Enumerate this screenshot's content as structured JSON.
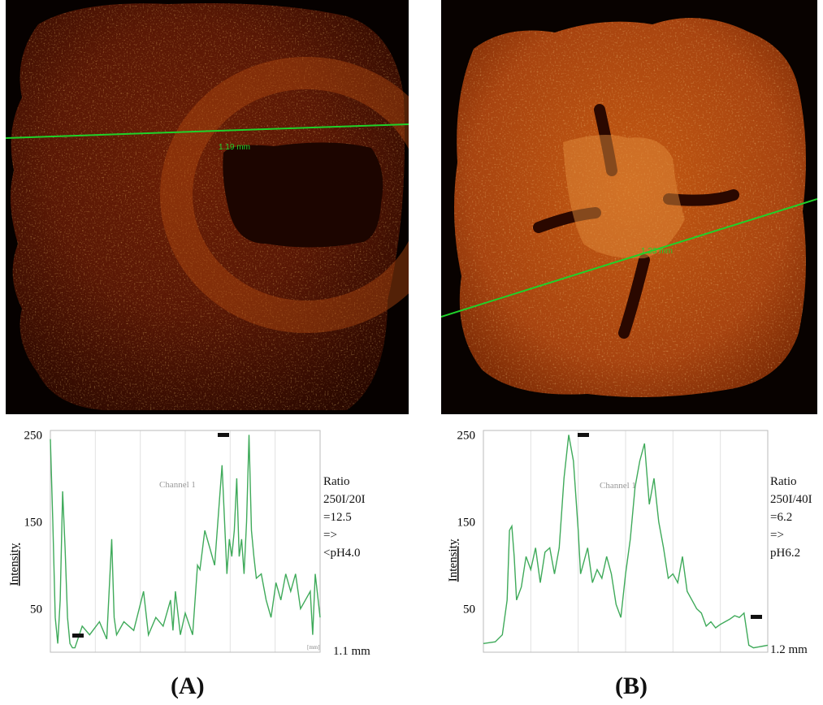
{
  "figure": {
    "panels": [
      {
        "id": "A",
        "label": "(A)",
        "micrograph": {
          "colormap": "hot",
          "line_label": "1.19 mm"
        },
        "plot": {
          "series_label": "Channel 1",
          "ylabel": "Intensity",
          "yticks": [
            "250",
            "150",
            "50"
          ],
          "ylim": [
            0,
            255
          ],
          "corner_mark": "[mm]",
          "end_label": "1.1 mm",
          "note": "Ratio\n250I/20I\n=12.5\n =>\n<pH4.0"
        }
      },
      {
        "id": "B",
        "label": "(B)",
        "micrograph": {
          "colormap": "hot",
          "line_label": "1.23 mm"
        },
        "plot": {
          "series_label": "Channel 1",
          "ylabel": "Intensity",
          "yticks": [
            "250",
            "150",
            "50"
          ],
          "ylim": [
            0,
            255
          ],
          "end_label": "1.2 mm",
          "note": "Ratio\n250I/40I\n=6.2\n=>\npH6.2"
        }
      }
    ],
    "colors": {
      "profile": "#3faa5a",
      "scan_line": "#1fd22a",
      "tissue_hot": "#d06a1a"
    }
  },
  "chart_data": [
    {
      "type": "line",
      "title": "",
      "xlabel": "",
      "ylabel": "Intensity",
      "ylim": [
        0,
        255
      ],
      "x_units": "mm",
      "x_max": 1.1,
      "series": [
        {
          "name": "Channel 1",
          "x": [
            0.0,
            0.01,
            0.02,
            0.03,
            0.04,
            0.05,
            0.06,
            0.07,
            0.08,
            0.09,
            0.1,
            0.13,
            0.16,
            0.2,
            0.23,
            0.25,
            0.26,
            0.27,
            0.3,
            0.34,
            0.38,
            0.4,
            0.43,
            0.46,
            0.49,
            0.5,
            0.51,
            0.53,
            0.55,
            0.58,
            0.6,
            0.61,
            0.63,
            0.65,
            0.67,
            0.7,
            0.72,
            0.73,
            0.74,
            0.75,
            0.76,
            0.77,
            0.78,
            0.79,
            0.8,
            0.81,
            0.82,
            0.83,
            0.84,
            0.86,
            0.88,
            0.9,
            0.92,
            0.94,
            0.96,
            0.98,
            1.0,
            1.02,
            1.04,
            1.06,
            1.07,
            1.08,
            1.1
          ],
          "y": [
            245,
            150,
            40,
            10,
            60,
            185,
            120,
            40,
            10,
            5,
            5,
            30,
            20,
            35,
            15,
            130,
            40,
            20,
            35,
            25,
            70,
            20,
            40,
            30,
            60,
            25,
            70,
            20,
            45,
            20,
            100,
            95,
            140,
            120,
            100,
            215,
            90,
            130,
            110,
            140,
            200,
            110,
            130,
            90,
            150,
            250,
            140,
            110,
            85,
            90,
            60,
            40,
            80,
            60,
            90,
            70,
            90,
            50,
            60,
            70,
            20,
            90,
            40
          ]
        }
      ]
    },
    {
      "type": "line",
      "title": "",
      "xlabel": "",
      "ylabel": "Intensity",
      "ylim": [
        0,
        255
      ],
      "x_units": "mm",
      "x_max": 1.2,
      "series": [
        {
          "name": "Channel 1",
          "x": [
            0.0,
            0.05,
            0.08,
            0.1,
            0.11,
            0.12,
            0.13,
            0.14,
            0.16,
            0.18,
            0.2,
            0.22,
            0.24,
            0.26,
            0.28,
            0.3,
            0.32,
            0.34,
            0.36,
            0.38,
            0.4,
            0.41,
            0.42,
            0.44,
            0.46,
            0.48,
            0.5,
            0.52,
            0.54,
            0.56,
            0.58,
            0.6,
            0.62,
            0.64,
            0.66,
            0.68,
            0.7,
            0.72,
            0.74,
            0.76,
            0.78,
            0.8,
            0.82,
            0.84,
            0.86,
            0.88,
            0.9,
            0.92,
            0.94,
            0.96,
            0.98,
            1.0,
            1.02,
            1.04,
            1.06,
            1.08,
            1.1,
            1.12,
            1.14,
            1.16,
            1.18,
            1.2
          ],
          "y": [
            10,
            12,
            20,
            60,
            140,
            145,
            110,
            60,
            75,
            110,
            95,
            120,
            80,
            115,
            120,
            90,
            120,
            200,
            250,
            220,
            140,
            90,
            100,
            120,
            80,
            95,
            85,
            110,
            90,
            55,
            40,
            90,
            130,
            190,
            220,
            240,
            170,
            200,
            150,
            120,
            85,
            90,
            80,
            110,
            70,
            60,
            50,
            45,
            30,
            35,
            28,
            32,
            35,
            38,
            42,
            40,
            45,
            8,
            5,
            6,
            7,
            8
          ]
        }
      ]
    }
  ]
}
